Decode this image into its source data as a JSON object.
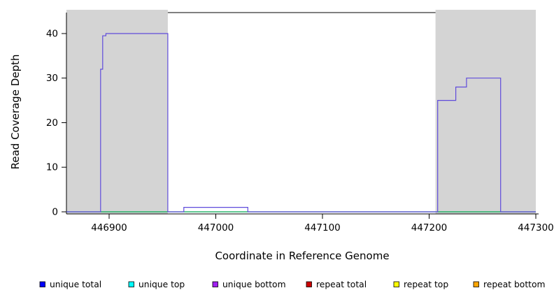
{
  "chart_data": {
    "type": "line",
    "subtype": "step",
    "xlabel": "Coordinate in Reference Genome",
    "ylabel": "Read Coverage Depth",
    "x_range": [
      446860,
      447300
    ],
    "y_range": [
      0,
      44.7
    ],
    "x_ticks": [
      446900,
      447000,
      447100,
      447200,
      447300
    ],
    "y_ticks": [
      0,
      10,
      20,
      30,
      40
    ],
    "grid": "off",
    "legend_position": "bottom",
    "shaded_regions": [
      {
        "name": "shaded-region-left",
        "x_start": 446860,
        "x_end": 446955,
        "color": "#d4d4d4"
      },
      {
        "name": "shaded-region-right",
        "x_start": 447206,
        "x_end": 447300,
        "color": "#d4d4d4"
      }
    ],
    "series": [
      {
        "name": "baseline green",
        "color": "#00a650",
        "points": [
          [
            446860,
            0
          ],
          [
            447300,
            0
          ]
        ]
      },
      {
        "name": "unique coverage",
        "color": "#5f4bdb",
        "points": [
          [
            446860,
            0
          ],
          [
            446892,
            0
          ],
          [
            446892,
            32
          ],
          [
            446894,
            32
          ],
          [
            446894,
            39.5
          ],
          [
            446897,
            39.5
          ],
          [
            446897,
            40
          ],
          [
            446955,
            40
          ],
          [
            446955,
            0
          ],
          [
            446970,
            0
          ],
          [
            446970,
            1
          ],
          [
            447030,
            1
          ],
          [
            447030,
            0
          ],
          [
            447208,
            0
          ],
          [
            447208,
            25
          ],
          [
            447225,
            25
          ],
          [
            447225,
            28
          ],
          [
            447235,
            28
          ],
          [
            447235,
            30
          ],
          [
            447267,
            30
          ],
          [
            447267,
            0
          ],
          [
            447300,
            0
          ]
        ]
      }
    ],
    "legend": [
      {
        "label": "unique total",
        "color": "#0000ff"
      },
      {
        "label": "unique top",
        "color": "#00ffff"
      },
      {
        "label": "unique bottom",
        "color": "#a020f0"
      },
      {
        "label": "repeat total",
        "color": "#cc0000"
      },
      {
        "label": "repeat top",
        "color": "#ffff00"
      },
      {
        "label": "repeat bottom",
        "color": "#ffa500"
      }
    ]
  }
}
